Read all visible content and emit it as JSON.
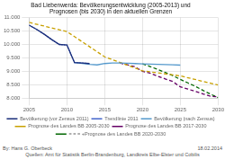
{
  "chart_data": {
    "type": "line",
    "title": "Bad Liebenwerda: Bevölkerungsentwicklung (2005-2013) und\nPrognosen (bis 2030) in den aktuellen Grenzen",
    "annotations": [
      "By: Hans G. Oberbeck",
      "Quellen: Amt für Statistik Berlin-Brandenburg, Landkreis Elbe-Elster und Cobilis",
      "18.02.2014"
    ],
    "xlim": [
      2005,
      2030
    ],
    "xticks": [
      2005,
      2010,
      2015,
      2020,
      2025,
      2030
    ],
    "ylim": [
      8000,
      11000
    ],
    "yticks": [
      {
        "value": 8000,
        "label": "8.000"
      },
      {
        "value": 8500,
        "label": "8.500"
      },
      {
        "value": 9000,
        "label": "9.000"
      },
      {
        "value": 9500,
        "label": "9.500"
      },
      {
        "value": 10000,
        "label": "10.000"
      },
      {
        "value": 10500,
        "label": "10.500"
      },
      {
        "value": 11000,
        "label": "11.000"
      }
    ],
    "grid": true,
    "legend": "bottom",
    "series": [
      {
        "name": "Bevölkerung (vor Zensus 2011)",
        "color": "#1a2e7a",
        "line_style": "solid",
        "x": [
          2005,
          2006,
          2007,
          2008,
          2009,
          2010,
          2011,
          2012,
          2013
        ],
        "values": [
          10720,
          10560,
          10380,
          10180,
          10000,
          9980,
          9330,
          9310,
          9290
        ]
      },
      {
        "name": "Trendlinie 2011",
        "color": "#4466cc",
        "line_style": "dotted",
        "x": [
          2005,
          2006,
          2007,
          2008,
          2009,
          2010,
          2011,
          2012,
          2013
        ],
        "values": [
          10720,
          10560,
          10380,
          10180,
          10000,
          9980,
          9330,
          9310,
          9290
        ]
      },
      {
        "name": "Bevölkerung (nach Zensus)",
        "color": "#5599cc",
        "line_style": "solid",
        "x": [
          2011,
          2012,
          2013,
          2014,
          2015,
          2016,
          2017,
          2018,
          2019,
          2020,
          2021,
          2022,
          2023,
          2024,
          2025
        ],
        "values": [
          9330,
          9290,
          9260,
          9240,
          9290,
          9310,
          9310,
          9300,
          9290,
          9280,
          9270,
          9260,
          9250,
          9240,
          9230
        ]
      },
      {
        "name": "Prognose des Landes BB 2005-2030",
        "color": "#c8a000",
        "line_style": "dashed",
        "x": [
          2005,
          2010,
          2015,
          2020,
          2025,
          2030
        ],
        "values": [
          10820,
          10480,
          9540,
          9020,
          8830,
          8490
        ]
      },
      {
        "name": "Prognose des Landes BB 2017-2030",
        "color": "#660066",
        "line_style": "dashed",
        "x": [
          2017,
          2018,
          2019,
          2020,
          2021,
          2022,
          2023,
          2024,
          2025,
          2026,
          2027,
          2028,
          2029,
          2030
        ],
        "values": [
          9310,
          9240,
          9170,
          9000,
          8930,
          8820,
          8720,
          8620,
          8420,
          8340,
          8250,
          8160,
          8070,
          8050
        ]
      },
      {
        "name": "= = = +Prognose des Landes BB 2020-2030",
        "color": "#006600",
        "line_style": "dashed",
        "x": [
          2020,
          2021,
          2022,
          2023,
          2024,
          2025,
          2026,
          2027,
          2028,
          2029,
          2030
        ],
        "values": [
          9280,
          9180,
          9070,
          8960,
          8840,
          8700,
          8570,
          8440,
          8290,
          8150,
          8020
        ]
      }
    ]
  }
}
